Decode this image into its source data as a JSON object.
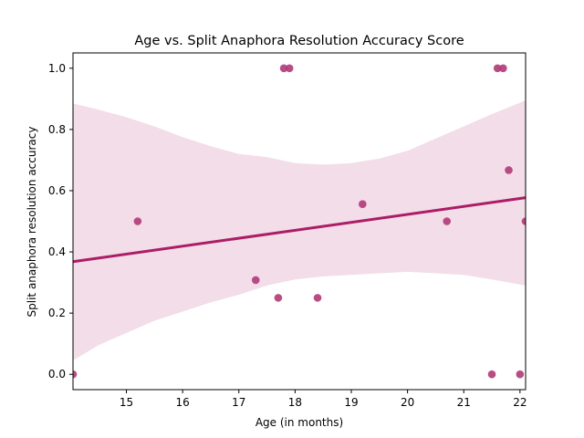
{
  "chart_data": {
    "type": "scatter",
    "title": "Age vs. Split Anaphora Resolution Accuracy Score",
    "xlabel": "Age (in months)",
    "ylabel": "Split anaphora resolution accuracy",
    "xlim": [
      14.05,
      22.1
    ],
    "ylim": [
      -0.05,
      1.05
    ],
    "xticks": [
      15,
      16,
      17,
      18,
      19,
      20,
      21,
      22
    ],
    "yticks": [
      0.0,
      0.2,
      0.4,
      0.6,
      0.8,
      1.0
    ],
    "ytick_labels": [
      "0.0",
      "0.2",
      "0.4",
      "0.6",
      "0.8",
      "1.0"
    ],
    "grid": false,
    "colors": {
      "points": "#b03a78",
      "line": "#ab1d66",
      "band": "#ab1d66"
    },
    "points": [
      {
        "x": 14.05,
        "y": 0.0
      },
      {
        "x": 15.2,
        "y": 0.5
      },
      {
        "x": 17.3,
        "y": 0.308
      },
      {
        "x": 17.7,
        "y": 0.25
      },
      {
        "x": 17.8,
        "y": 1.0
      },
      {
        "x": 17.9,
        "y": 1.0
      },
      {
        "x": 18.4,
        "y": 0.25
      },
      {
        "x": 19.2,
        "y": 0.556
      },
      {
        "x": 20.7,
        "y": 0.5
      },
      {
        "x": 21.5,
        "y": 0.0
      },
      {
        "x": 21.6,
        "y": 1.0
      },
      {
        "x": 21.7,
        "y": 1.0
      },
      {
        "x": 21.8,
        "y": 0.667
      },
      {
        "x": 22.0,
        "y": 0.0
      },
      {
        "x": 22.1,
        "y": 0.5
      }
    ],
    "regression_line": {
      "x": [
        14.05,
        22.1
      ],
      "y": [
        0.368,
        0.577
      ]
    },
    "confidence_band": {
      "x": [
        14.05,
        14.5,
        15.0,
        15.5,
        16.0,
        16.5,
        17.0,
        17.5,
        18.0,
        18.5,
        19.0,
        19.5,
        20.0,
        20.5,
        21.0,
        21.5,
        22.1
      ],
      "upper": [
        0.885,
        0.865,
        0.84,
        0.81,
        0.775,
        0.745,
        0.72,
        0.71,
        0.69,
        0.685,
        0.69,
        0.705,
        0.73,
        0.77,
        0.81,
        0.85,
        0.895
      ],
      "lower": [
        0.045,
        0.095,
        0.135,
        0.175,
        0.205,
        0.235,
        0.26,
        0.29,
        0.31,
        0.32,
        0.325,
        0.33,
        0.335,
        0.33,
        0.325,
        0.31,
        0.29
      ]
    }
  }
}
